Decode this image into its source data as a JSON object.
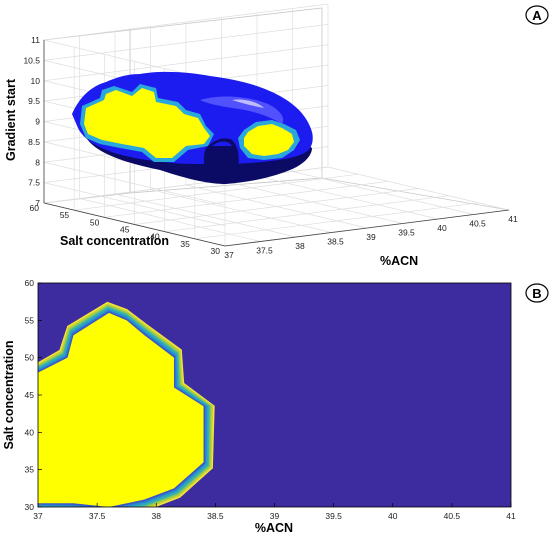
{
  "panels": [
    {
      "letter": "A"
    },
    {
      "letter": "B"
    }
  ],
  "chart_data": [
    {
      "panel": "A",
      "type": "surface3d",
      "title": "",
      "xlabel": "%ACN",
      "ylabel": "Salt concentration",
      "zlabel": "Gradient start",
      "xlim": [
        37,
        41
      ],
      "ylim": [
        30,
        60
      ],
      "zlim": [
        7,
        11
      ],
      "x_ticks": [
        "37",
        "37.5",
        "38",
        "38.5",
        "39",
        "39.5",
        "40",
        "40.5",
        "41"
      ],
      "y_ticks": [
        "30",
        "35",
        "40",
        "45",
        "50",
        "55",
        "60"
      ],
      "z_ticks": [
        "7",
        "7.5",
        "8",
        "8.5",
        "9",
        "9.5",
        "10",
        "10.5",
        "11"
      ],
      "grid": true,
      "colors": {
        "high": "#ffff00",
        "edge": "#2fa8d8",
        "mid": "#1a1aff",
        "low": "#0a0a6a"
      }
    },
    {
      "panel": "B",
      "type": "heatmap",
      "title": "",
      "xlabel": "%ACN",
      "ylabel": "Salt concentration",
      "xlim": [
        37,
        41
      ],
      "ylim": [
        30,
        60
      ],
      "x_ticks": [
        "37",
        "37.5",
        "38",
        "38.5",
        "39",
        "39.5",
        "40",
        "40.5",
        "41"
      ],
      "y_ticks": [
        "30",
        "35",
        "40",
        "45",
        "50",
        "55",
        "60"
      ],
      "region_boundary": [
        [
          37.0,
          30.5
        ],
        [
          37.0,
          48.0
        ],
        [
          37.25,
          50.0
        ],
        [
          37.3,
          53.0
        ],
        [
          37.6,
          56.0
        ],
        [
          37.75,
          55.0
        ],
        [
          37.9,
          53.0
        ],
        [
          38.15,
          50.0
        ],
        [
          38.15,
          46.0
        ],
        [
          38.4,
          43.5
        ],
        [
          38.4,
          36.0
        ],
        [
          38.15,
          32.5
        ],
        [
          37.9,
          31.0
        ],
        [
          37.6,
          30.0
        ],
        [
          37.3,
          30.5
        ]
      ],
      "colors": {
        "inside": "#ffff00",
        "background": "#3c2ca0",
        "transition": [
          "#f4e23a",
          "#c8d232",
          "#8cc85a",
          "#3fb4a0",
          "#2aa2c8",
          "#2c7fd0",
          "#3a56c4"
        ]
      }
    }
  ]
}
